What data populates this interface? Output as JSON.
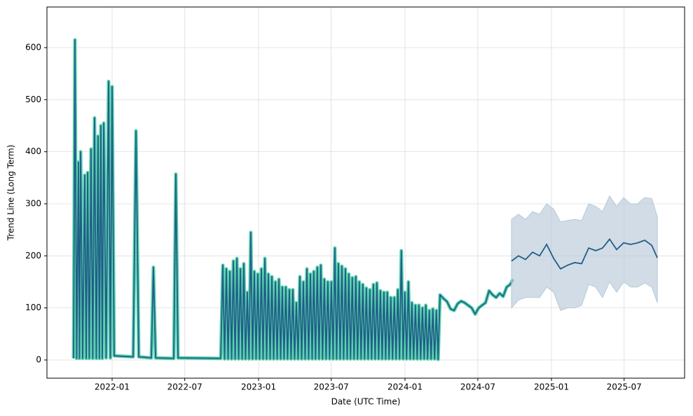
{
  "chart_data": {
    "type": "line",
    "x_label": "Date (UTC Time)",
    "y_label": "Trend Line (Long Term)",
    "xlim": [
      2021.555,
      2025.909
    ],
    "ylim": [
      -35,
      678
    ],
    "xticks": [
      {
        "value": 2022.0,
        "label": "2022-01"
      },
      {
        "value": 2022.496,
        "label": "2022-07"
      },
      {
        "value": 2023.0,
        "label": "2023-01"
      },
      {
        "value": 2023.496,
        "label": "2023-07"
      },
      {
        "value": 2024.0,
        "label": "2024-01"
      },
      {
        "value": 2024.497,
        "label": "2024-07"
      },
      {
        "value": 2025.0,
        "label": "2025-01"
      },
      {
        "value": 2025.496,
        "label": "2025-07"
      }
    ],
    "yticks": [
      0,
      100,
      200,
      300,
      400,
      500,
      600
    ],
    "grid": true,
    "series": [
      {
        "color": "#5dd3b0",
        "line_color": "#1f5f87",
        "x": [
          2021.737,
          2021.746,
          2021.758,
          2021.77,
          2021.777,
          2021.785,
          2021.799,
          2021.813,
          2021.823,
          2021.833,
          2021.844,
          2021.856,
          2021.868,
          2021.88,
          2021.892,
          2021.904,
          2021.913,
          2021.923,
          2021.933,
          2021.943,
          2021.959,
          2021.976,
          2021.988,
          2022.0,
          2022.014,
          2022.144,
          2022.163,
          2022.182,
          2022.268,
          2022.282,
          2022.297,
          2022.421,
          2022.435,
          2022.45,
          2022.742,
          2022.756,
          2022.768,
          2022.78,
          2022.792,
          2022.804,
          2022.816,
          2022.828,
          2022.84,
          2022.852,
          2022.864,
          2022.876,
          2022.888,
          2022.899,
          2022.911,
          2022.923,
          2022.935,
          2022.947,
          2022.959,
          2022.971,
          2022.983,
          2022.995,
          2023.007,
          2023.019,
          2023.031,
          2023.043,
          2023.055,
          2023.067,
          2023.079,
          2023.091,
          2023.103,
          2023.115,
          2023.127,
          2023.139,
          2023.151,
          2023.162,
          2023.174,
          2023.186,
          2023.198,
          2023.21,
          2023.222,
          2023.234,
          2023.246,
          2023.258,
          2023.27,
          2023.282,
          2023.294,
          2023.306,
          2023.318,
          2023.33,
          2023.342,
          2023.354,
          2023.366,
          2023.377,
          2023.389,
          2023.401,
          2023.413,
          2023.425,
          2023.437,
          2023.449,
          2023.461,
          2023.473,
          2023.485,
          2023.497,
          2023.509,
          2023.521,
          2023.533,
          2023.545,
          2023.557,
          2023.569,
          2023.581,
          2023.593,
          2023.605,
          2023.616,
          2023.628,
          2023.64,
          2023.652,
          2023.664,
          2023.676,
          2023.688,
          2023.7,
          2023.712,
          2023.724,
          2023.736,
          2023.748,
          2023.76,
          2023.772,
          2023.784,
          2023.796,
          2023.808,
          2023.82,
          2023.832,
          2023.844,
          2023.856,
          2023.868,
          2023.879,
          2023.891,
          2023.903,
          2023.915,
          2023.927,
          2023.939,
          2023.951,
          2023.963,
          2023.975,
          2023.987,
          2023.999,
          2024.011,
          2024.023,
          2024.035,
          2024.047,
          2024.059,
          2024.071,
          2024.083,
          2024.095,
          2024.107,
          2024.119,
          2024.131,
          2024.142,
          2024.154,
          2024.166,
          2024.178,
          2024.19,
          2024.202,
          2024.214,
          2024.226,
          2024.239,
          2024.263,
          2024.287,
          2024.311,
          2024.335,
          2024.359,
          2024.383,
          2024.407,
          2024.431,
          2024.455,
          2024.479,
          2024.503,
          2024.526,
          2024.55,
          2024.574,
          2024.598,
          2024.622,
          2024.646,
          2024.67,
          2024.694,
          2024.718,
          2024.737
        ],
        "values": [
          3,
          615,
          3,
          380,
          3,
          400,
          3,
          355,
          3,
          360,
          3,
          405,
          3,
          465,
          3,
          430,
          3,
          450,
          3,
          455,
          4,
          535,
          4,
          525,
          8,
          6,
          440,
          6,
          4,
          178,
          4,
          3,
          357,
          4,
          3,
          182,
          2,
          175,
          2,
          170,
          2,
          190,
          2,
          195,
          2,
          175,
          2,
          185,
          2,
          130,
          2,
          245,
          2,
          170,
          2,
          165,
          2,
          175,
          2,
          195,
          2,
          165,
          2,
          160,
          2,
          150,
          2,
          155,
          2,
          140,
          2,
          140,
          2,
          135,
          2,
          135,
          2,
          110,
          2,
          160,
          2,
          150,
          2,
          175,
          2,
          165,
          2,
          170,
          2,
          178,
          2,
          182,
          2,
          155,
          2,
          150,
          2,
          150,
          2,
          215,
          2,
          185,
          2,
          180,
          2,
          175,
          2,
          165,
          2,
          158,
          2,
          160,
          2,
          150,
          2,
          145,
          2,
          138,
          2,
          135,
          2,
          145,
          2,
          148,
          2,
          133,
          2,
          130,
          2,
          130,
          2,
          120,
          2,
          120,
          2,
          135,
          2,
          210,
          2,
          130,
          2,
          150,
          2,
          110,
          2,
          105,
          2,
          105,
          2,
          100,
          2,
          105,
          2,
          95,
          2,
          98,
          2,
          95,
          1,
          125,
          118,
          112,
          98,
          95,
          108,
          113,
          110,
          105,
          100,
          88,
          100,
          105,
          110,
          133,
          125,
          120,
          128,
          122,
          140,
          145,
          155
        ]
      },
      {
        "color": "#1f5f87",
        "band_color": "#b8cad8",
        "x": [
          2024.727,
          2024.775,
          2024.823,
          2024.871,
          2024.919,
          2024.967,
          2025.015,
          2025.062,
          2025.11,
          2025.158,
          2025.206,
          2025.254,
          2025.302,
          2025.349,
          2025.397,
          2025.445,
          2025.493,
          2025.541,
          2025.589,
          2025.637,
          2025.685,
          2025.723
        ],
        "values": [
          190,
          200,
          193,
          207,
          200,
          222,
          195,
          175,
          182,
          187,
          185,
          215,
          210,
          215,
          232,
          212,
          225,
          222,
          225,
          230,
          220,
          196
        ],
        "upper": [
          270,
          280,
          270,
          285,
          280,
          300,
          290,
          265,
          268,
          270,
          268,
          300,
          295,
          285,
          315,
          295,
          312,
          300,
          300,
          312,
          310,
          275
        ],
        "lower": [
          100,
          115,
          120,
          120,
          120,
          140,
          130,
          95,
          100,
          100,
          105,
          145,
          140,
          120,
          150,
          130,
          150,
          140,
          140,
          148,
          140,
          110
        ]
      }
    ]
  }
}
